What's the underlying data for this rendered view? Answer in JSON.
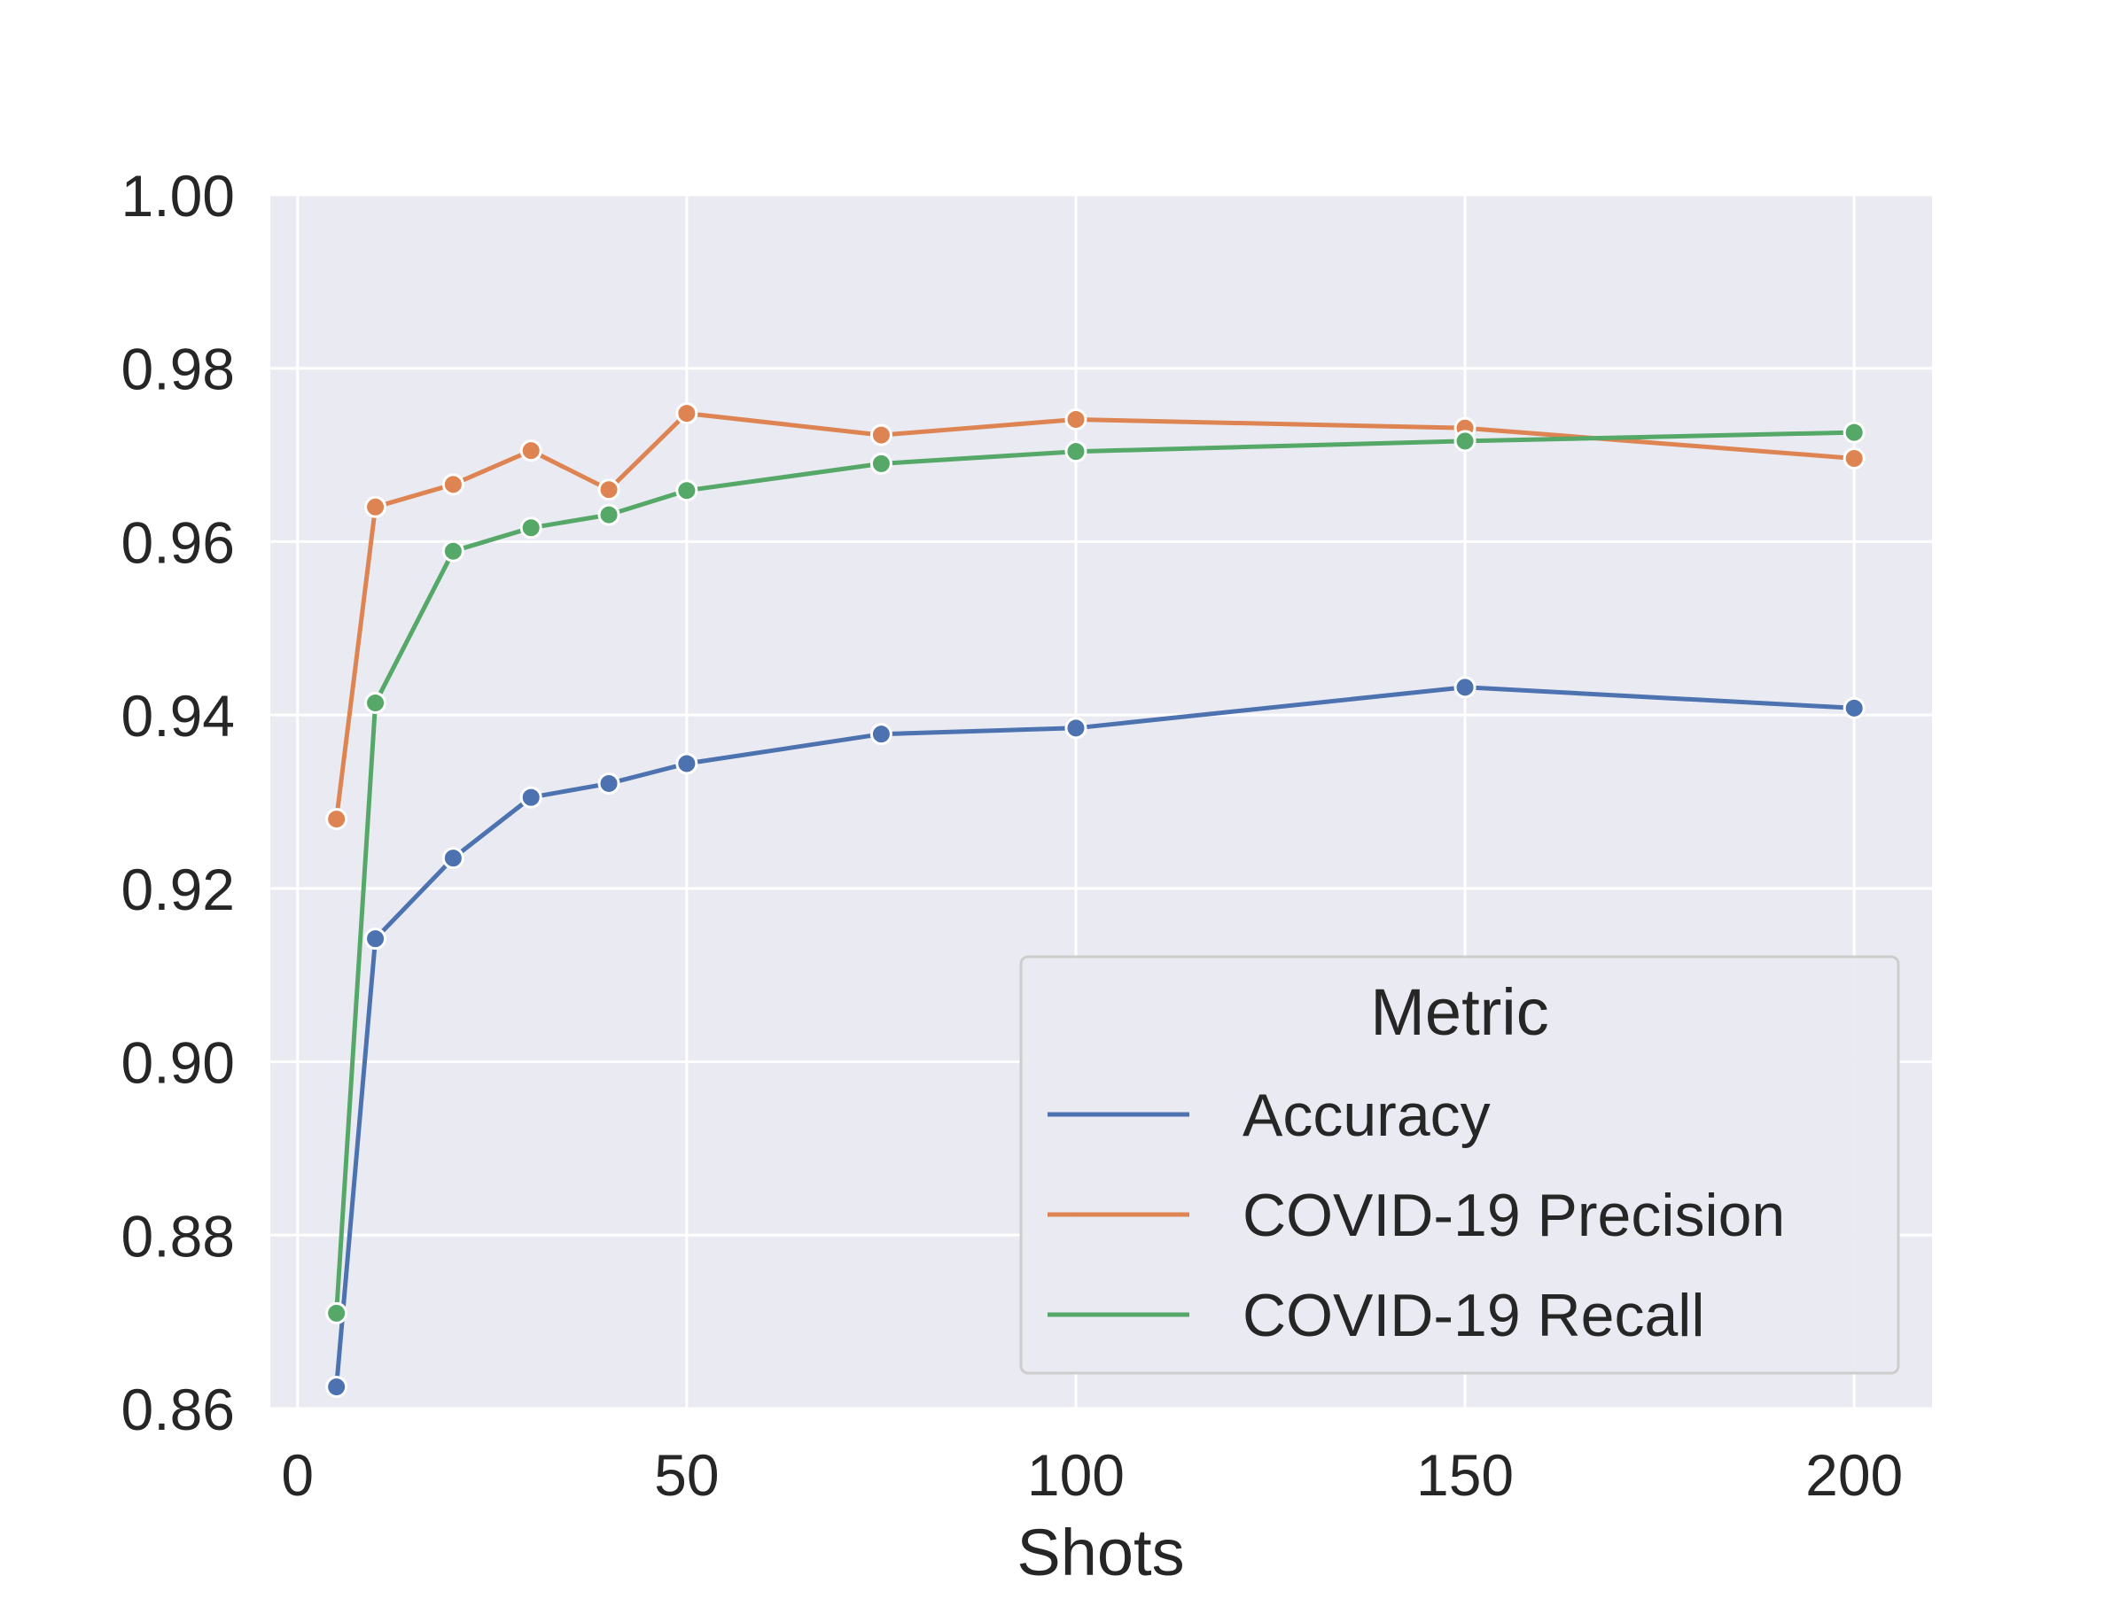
{
  "chart_data": {
    "type": "line",
    "xlabel": "Shots",
    "ylabel": "",
    "xlim": [
      -3.5,
      210
    ],
    "ylim": [
      0.86,
      1.0
    ],
    "xticks": [
      0,
      50,
      100,
      150,
      200
    ],
    "yticks": [
      0.86,
      0.88,
      0.9,
      0.92,
      0.94,
      0.96,
      0.98,
      1.0
    ],
    "xtick_labels": [
      "0",
      "50",
      "100",
      "150",
      "200"
    ],
    "ytick_labels": [
      "0.86",
      "0.88",
      "0.90",
      "0.92",
      "0.94",
      "0.96",
      "0.98",
      "1.00"
    ],
    "grid": true,
    "x": [
      5,
      10,
      20,
      30,
      40,
      50,
      75,
      100,
      150,
      200
    ],
    "series": [
      {
        "name": "Accuracy",
        "color": "#4c72b0",
        "values": [
          0.8625,
          0.9142,
          0.9235,
          0.9305,
          0.9321,
          0.9344,
          0.9378,
          0.9385,
          0.9432,
          0.9408
        ]
      },
      {
        "name": "COVID-19 Precision",
        "color": "#dd8452",
        "values": [
          0.928,
          0.964,
          0.9666,
          0.9705,
          0.966,
          0.9748,
          0.9723,
          0.9741,
          0.9731,
          0.9696
        ]
      },
      {
        "name": "COVID-19 Recall",
        "color": "#55a868",
        "values": [
          0.871,
          0.9414,
          0.9589,
          0.9616,
          0.9631,
          0.9659,
          0.969,
          0.9704,
          0.9716,
          0.9726
        ]
      }
    ],
    "legend": {
      "title": "Metric",
      "placement": "lower-right"
    },
    "colors": {
      "plot_background": "#eaeaf2",
      "grid": "#ffffff",
      "text": "#262626"
    }
  }
}
